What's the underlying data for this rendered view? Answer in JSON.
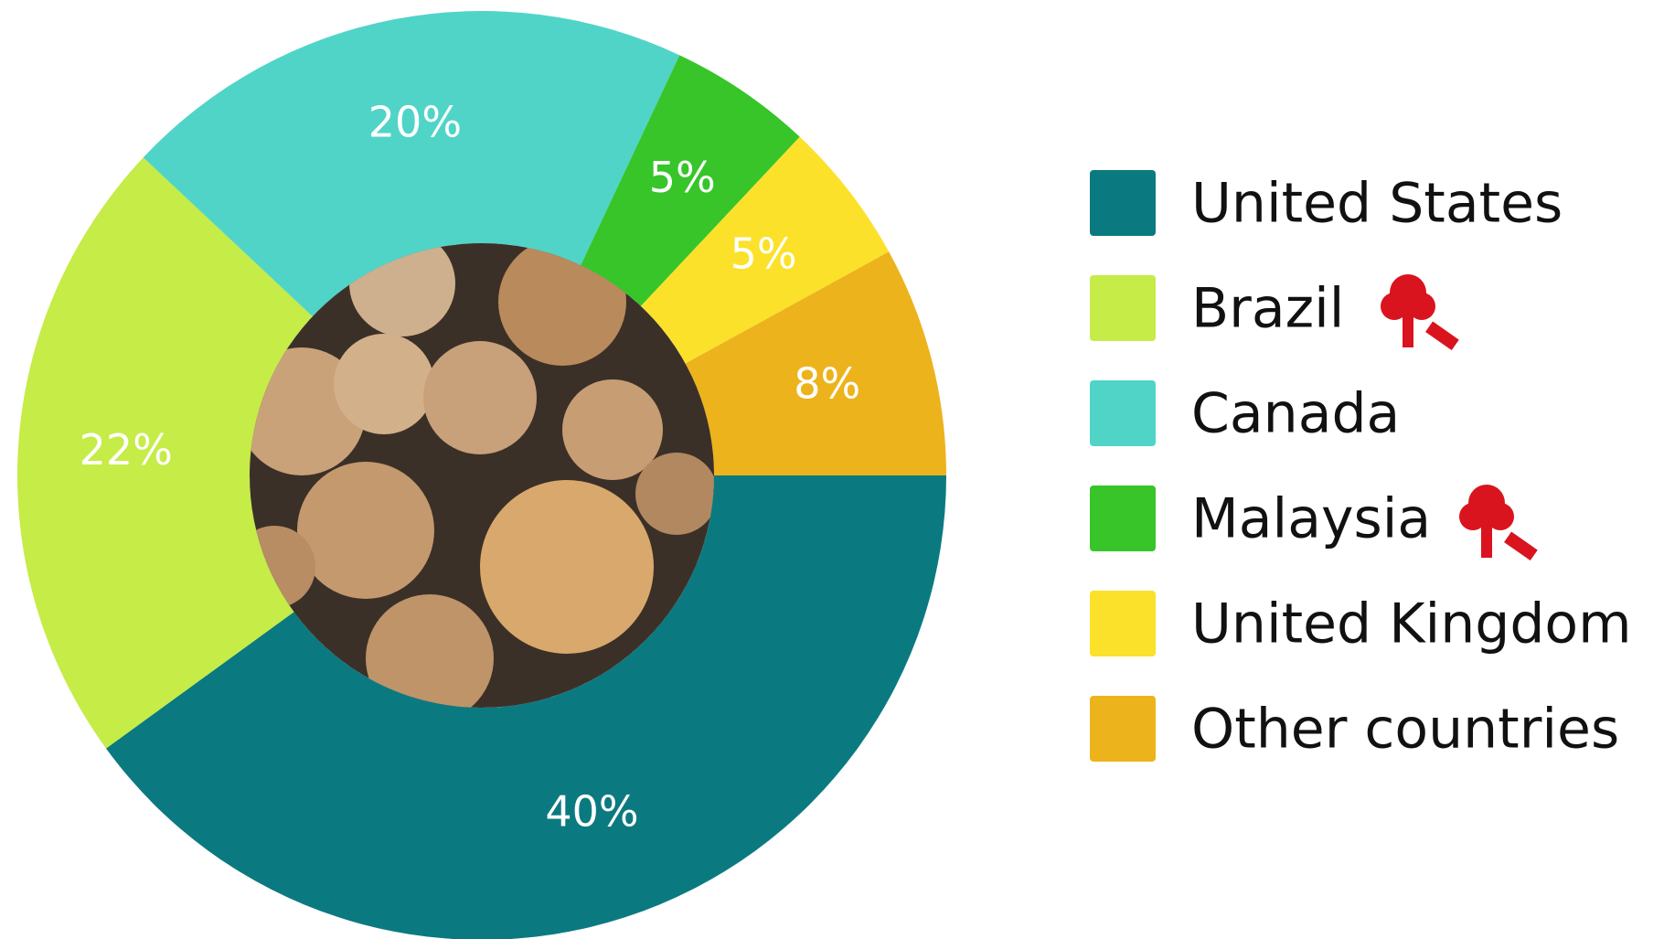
{
  "chart_data": {
    "type": "donut",
    "categories": [
      "United States",
      "Brazil",
      "Canada",
      "Malaysia",
      "United Kingdom",
      "Other countries"
    ],
    "values": [
      40,
      22,
      20,
      5,
      5,
      8
    ],
    "value_labels": [
      "40%",
      "22%",
      "20%",
      "5%",
      "5%",
      "8%"
    ],
    "colors": [
      "#0b7a80",
      "#c5ec47",
      "#50d4c8",
      "#37c52a",
      "#fbe12a",
      "#ecb31c"
    ],
    "legend": "right"
  }
}
